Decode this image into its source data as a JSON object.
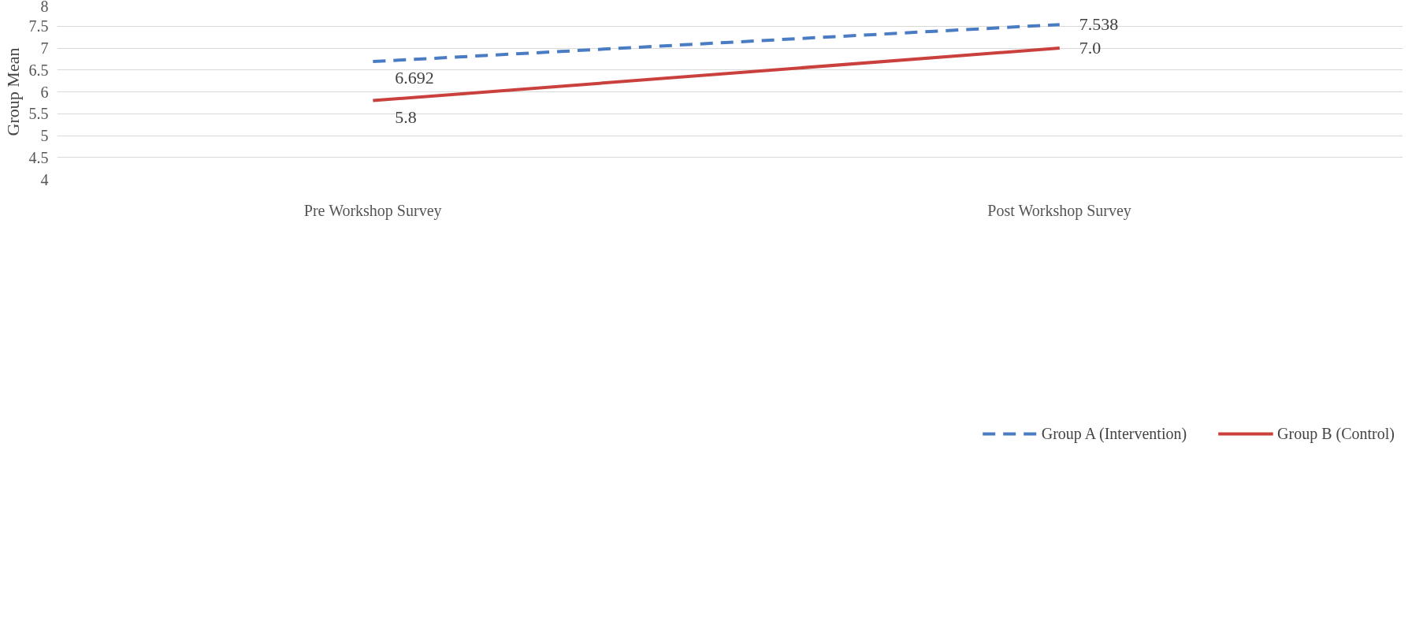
{
  "chart_data": {
    "type": "line",
    "ylabel": "Group Mean",
    "categories": [
      "Pre Workshop Survey",
      "Post Workshop Survey"
    ],
    "series": [
      {
        "name": "Group A (Intervention)",
        "color": "#4a7cc4",
        "values": [
          6.692,
          7.538
        ],
        "line_style": "dashed",
        "value_labels": [
          "6.692",
          "7.538"
        ]
      },
      {
        "name": "Group B (Control)",
        "color": "#c9403d",
        "values": [
          5.8,
          7.0
        ],
        "line_style": "solid",
        "value_labels": [
          "5.8",
          "7.0"
        ]
      }
    ],
    "ylim": [
      4,
      8
    ],
    "yticks": [
      4,
      4.5,
      5,
      5.5,
      6,
      6.5,
      7,
      7.5,
      8
    ],
    "grid": "y",
    "legend": "bottom",
    "marker": "none"
  }
}
